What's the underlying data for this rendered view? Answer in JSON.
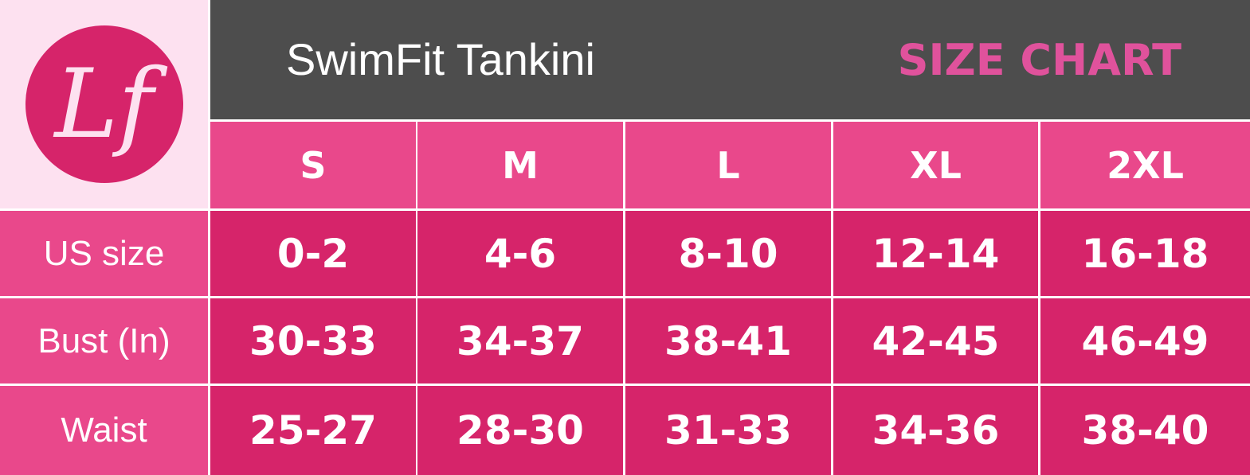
{
  "logo": "Lf",
  "header": {
    "title": "SwimFit Tankini",
    "subtitle": "SIZE CHART"
  },
  "table": {
    "columns": [
      "S",
      "M",
      "L",
      "XL",
      "2XL"
    ],
    "rows": [
      {
        "label": "US size",
        "values": [
          "0-2",
          "4-6",
          "8-10",
          "12-14",
          "16-18"
        ]
      },
      {
        "label": "Bust (In)",
        "values": [
          "30-33",
          "34-37",
          "38-41",
          "42-45",
          "46-49"
        ]
      },
      {
        "label": "Waist",
        "values": [
          "25-27",
          "28-30",
          "31-33",
          "34-36",
          "38-40"
        ]
      }
    ]
  }
}
